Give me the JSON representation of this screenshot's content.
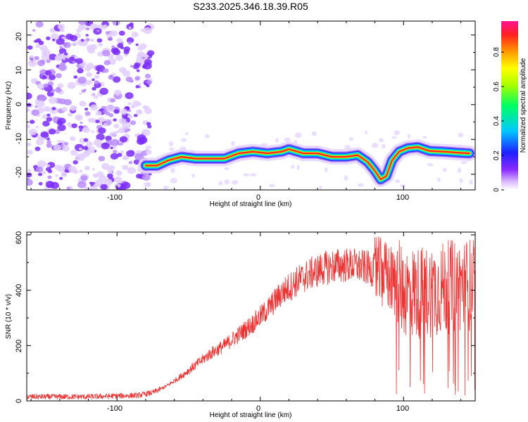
{
  "chart_data": [
    {
      "type": "heatmap",
      "title": "S233.2025.346.18.39.R05",
      "xlabel": "Height of straight line (km)",
      "ylabel": "Frequency (Hz)",
      "xlim": [
        -163,
        150
      ],
      "ylim": [
        -24.5,
        24
      ],
      "xticks": [
        -100,
        0,
        100
      ],
      "yticks": [
        20,
        10,
        0,
        -10,
        -20
      ],
      "ridge": [
        [
          -80,
          -17.5
        ],
        [
          -72,
          -17.5
        ],
        [
          -64,
          -16
        ],
        [
          -55,
          -15
        ],
        [
          -45,
          -15.5
        ],
        [
          -35,
          -15.5
        ],
        [
          -25,
          -15.5
        ],
        [
          -15,
          -14
        ],
        [
          -5,
          -13.5
        ],
        [
          5,
          -14
        ],
        [
          15,
          -13.5
        ],
        [
          20,
          -12.8
        ],
        [
          30,
          -14
        ],
        [
          40,
          -14
        ],
        [
          50,
          -15
        ],
        [
          60,
          -15
        ],
        [
          68,
          -14.5
        ],
        [
          75,
          -16.5
        ],
        [
          80,
          -19
        ],
        [
          84,
          -21.5
        ],
        [
          88,
          -20.5
        ],
        [
          92,
          -16
        ],
        [
          97,
          -13.5
        ],
        [
          103,
          -12.5
        ],
        [
          110,
          -12.2
        ],
        [
          118,
          -13.3
        ],
        [
          128,
          -13.5
        ],
        [
          138,
          -13.8
        ],
        [
          146,
          -14
        ]
      ],
      "noise_region_x": [
        -163,
        -80
      ],
      "colorbar": {
        "label": "Normalized spectral amplitude",
        "ticks": [
          0.0,
          0.2,
          0.4,
          0.6,
          0.8
        ],
        "range": [
          0,
          0.98
        ]
      }
    },
    {
      "type": "line",
      "xlabel": "Height of straight line (km)",
      "ylabel": "SNR (10 * v/v)",
      "xlim": [
        -163,
        150
      ],
      "ylim": [
        0,
        610
      ],
      "xticks": [
        -100,
        0,
        100
      ],
      "yticks": [
        0,
        200,
        400,
        600
      ],
      "color": "#ee3333",
      "series": [
        {
          "name": "SNR",
          "x": [
            -163,
            -140,
            -120,
            -100,
            -85,
            -75,
            -65,
            -55,
            -45,
            -35,
            -25,
            -15,
            -5,
            5,
            15,
            25,
            35,
            45,
            55,
            65,
            75,
            80,
            85,
            90,
            95,
            100,
            110,
            120,
            130,
            140,
            150
          ],
          "y": [
            15,
            15,
            15,
            18,
            20,
            30,
            55,
            90,
            130,
            170,
            200,
            240,
            280,
            330,
            390,
            430,
            460,
            480,
            490,
            490,
            480,
            470,
            460,
            440,
            420,
            400,
            390,
            400,
            410,
            420,
            420
          ]
        }
      ]
    }
  ]
}
